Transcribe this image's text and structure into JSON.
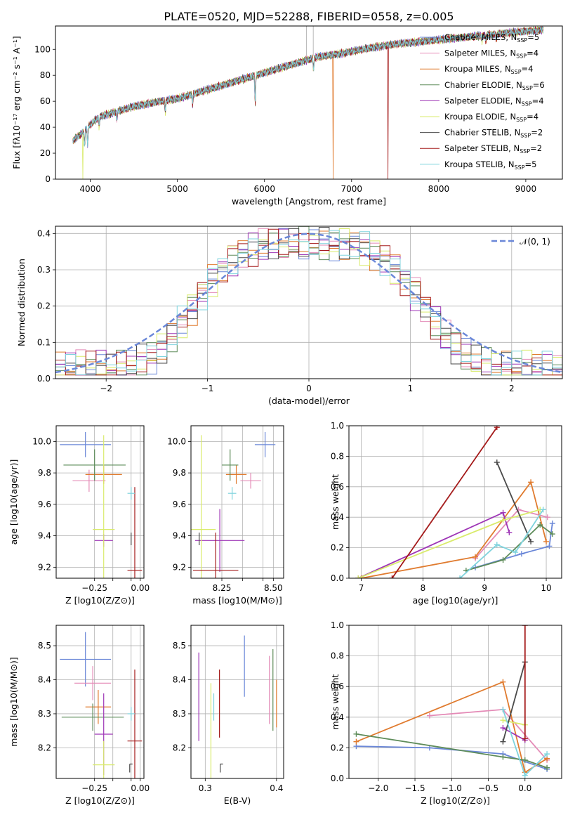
{
  "figure": {
    "title": "PLATE=0520, MJD=52288, FIBERID=0558, z=0.005"
  },
  "colors": {
    "Chabrier MILES": "#6a87d8",
    "Salpeter MILES": "#e48bb7",
    "Kroupa MILES": "#e07b2f",
    "Chabrier ELODIE": "#5e8c5a",
    "Salpeter ELODIE": "#9e35b6",
    "Kroupa ELODIE": "#d9eb6b",
    "Chabrier STELIB": "#4a4a4a",
    "Salpeter STELIB": "#a51c1c",
    "Kroupa STELIB": "#7fd3dd",
    "normal_curve": "#6a87d8"
  },
  "chart_data": [
    {
      "id": "spectrum",
      "type": "line",
      "xlabel": "wavelength [Angstrom, rest frame]",
      "ylabel": "Flux [f_λ 10^-17 erg cm^-2 s^-1 A^-1]",
      "xlim": [
        3600,
        9420
      ],
      "ylim": [
        0,
        118
      ],
      "xticks": [
        4000,
        5000,
        6000,
        7000,
        8000,
        9000
      ],
      "yticks": [
        0,
        20,
        40,
        60,
        80,
        100
      ],
      "grid": false,
      "legend_position": "lower-right",
      "legend": [
        {
          "name": "Chabrier MILES",
          "nssp": 5
        },
        {
          "name": "Salpeter MILES",
          "nssp": 4
        },
        {
          "name": "Kroupa MILES",
          "nssp": 4
        },
        {
          "name": "Chabrier ELODIE",
          "nssp": 6
        },
        {
          "name": "Salpeter ELODIE",
          "nssp": 4
        },
        {
          "name": "Kroupa ELODIE",
          "nssp": 4
        },
        {
          "name": "Chabrier STELIB",
          "nssp": 2
        },
        {
          "name": "Salpeter STELIB",
          "nssp": 2
        },
        {
          "name": "Kroupa STELIB",
          "nssp": 5
        }
      ],
      "continuum": [
        [
          3800,
          30
        ],
        [
          3900,
          35
        ],
        [
          4000,
          42
        ],
        [
          4100,
          48
        ],
        [
          4300,
          52
        ],
        [
          4500,
          56
        ],
        [
          4800,
          60
        ],
        [
          5000,
          62
        ],
        [
          5200,
          66
        ],
        [
          5400,
          70
        ],
        [
          5700,
          76
        ],
        [
          6000,
          82
        ],
        [
          6300,
          88
        ],
        [
          6600,
          94
        ],
        [
          6900,
          97
        ],
        [
          7200,
          101
        ],
        [
          7500,
          104
        ],
        [
          7800,
          106
        ],
        [
          8100,
          108
        ],
        [
          8400,
          110
        ],
        [
          8700,
          112
        ],
        [
          9000,
          114
        ],
        [
          9200,
          115
        ]
      ],
      "absorption_features": [
        [
          3934,
          12
        ],
        [
          3969,
          14
        ],
        [
          4102,
          8
        ],
        [
          4305,
          6
        ],
        [
          4861,
          10
        ],
        [
          5175,
          8
        ],
        [
          5893,
          22
        ],
        [
          6563,
          10
        ],
        [
          8498,
          4
        ],
        [
          8542,
          5
        ],
        [
          8662,
          5
        ]
      ],
      "spikes": [
        {
          "series": "Kroupa ELODIE",
          "x": 3915,
          "y": 0
        },
        {
          "series": "Kroupa MILES",
          "x": 6790,
          "y": 0
        },
        {
          "series": "Salpeter STELIB",
          "x": 7420,
          "y": 0
        }
      ]
    },
    {
      "id": "residuals",
      "type": "line",
      "xlabel": "(data-model)/error",
      "ylabel": "Normed distribution",
      "xlim": [
        -2.5,
        2.5
      ],
      "ylim": [
        0,
        0.42
      ],
      "xticks": [
        -2,
        -1,
        0,
        1,
        2
      ],
      "yticks": [
        0.0,
        0.1,
        0.2,
        0.3,
        0.4
      ],
      "grid": true,
      "legend_position": "upper-right",
      "legend": [
        {
          "name": "N(0, 1)",
          "style": "dashed"
        }
      ],
      "bin_width": 0.1,
      "histogram_shape": "approximately flat-topped, peak ~0.38 near 0, falling to ~0.04 at ±2.5"
    },
    {
      "id": "age_vs_Z",
      "type": "scatter",
      "xlabel": "Z [log10(Z/Z⊙)]",
      "ylabel": "age [log10(age/yr)]",
      "xlim": [
        -0.46,
        0.02
      ],
      "ylim": [
        9.13,
        10.1
      ],
      "xticks": [
        -0.25,
        -0.15,
        -0.05,
        0.0
      ],
      "xticklabels": [
        "−0.25",
        "",
        "",
        "0.00"
      ],
      "yticks": [
        9.2,
        9.4,
        9.6,
        9.8,
        10.0
      ],
      "grid": true,
      "points": [
        {
          "series": "Chabrier MILES",
          "x": -0.3,
          "y": 9.98,
          "xerr": 0.14,
          "yerr": 0.08
        },
        {
          "series": "Salpeter MILES",
          "x": -0.28,
          "y": 9.75,
          "xerr": 0.09,
          "yerr": 0.07
        },
        {
          "series": "Kroupa MILES",
          "x": -0.2,
          "y": 9.79,
          "xerr": 0.1,
          "yerr": 0.06
        },
        {
          "series": "Chabrier ELODIE",
          "x": -0.25,
          "y": 9.85,
          "xerr": 0.17,
          "yerr": 0.1
        },
        {
          "series": "Salpeter ELODIE",
          "x": -0.2,
          "y": 9.37,
          "xerr": 0.05,
          "yerr": 0.04
        },
        {
          "series": "Kroupa ELODIE",
          "x": -0.2,
          "y": 9.44,
          "xerr": 0.06,
          "yerr": 0.6
        },
        {
          "series": "Chabrier STELIB",
          "x": -0.05,
          "y": 9.38,
          "xerr": 0.0,
          "yerr": 0.04
        },
        {
          "series": "Salpeter STELIB",
          "x": -0.03,
          "y": 9.18,
          "xerr": 0.04,
          "yerr": 0.53
        },
        {
          "series": "Kroupa STELIB",
          "x": -0.05,
          "y": 9.67,
          "xerr": 0.02,
          "yerr": 0.04
        }
      ]
    },
    {
      "id": "age_vs_mass",
      "type": "scatter",
      "xlabel": "mass [log10(M/M⊙)]",
      "ylabel": "",
      "xlim": [
        8.1,
        8.55
      ],
      "ylim": [
        9.13,
        10.1
      ],
      "xticks": [
        8.25,
        8.35,
        8.45,
        8.5
      ],
      "xticklabels": [
        "8.25",
        "",
        "",
        "8.50"
      ],
      "yticks": [
        9.2,
        9.4,
        9.6,
        9.8,
        10.0
      ],
      "grid": true,
      "points": [
        {
          "series": "Chabrier MILES",
          "x": 8.46,
          "y": 9.98,
          "xerr": 0.05,
          "yerr": 0.08
        },
        {
          "series": "Salpeter MILES",
          "x": 8.39,
          "y": 9.75,
          "xerr": 0.05,
          "yerr": 0.05
        },
        {
          "series": "Kroupa MILES",
          "x": 8.32,
          "y": 9.79,
          "xerr": 0.05,
          "yerr": 0.06
        },
        {
          "series": "Chabrier ELODIE",
          "x": 8.29,
          "y": 9.85,
          "xerr": 0.04,
          "yerr": 0.1
        },
        {
          "series": "Salpeter ELODIE",
          "x": 8.24,
          "y": 9.37,
          "xerr": 0.12,
          "yerr": 0.2
        },
        {
          "series": "Kroupa ELODIE",
          "x": 8.15,
          "y": 9.44,
          "xerr": 0.07,
          "yerr": 0.6
        },
        {
          "series": "Chabrier STELIB",
          "x": 8.14,
          "y": 9.38,
          "xerr": 0.0,
          "yerr": 0.04
        },
        {
          "series": "Salpeter STELIB",
          "x": 8.22,
          "y": 9.18,
          "xerr": 0.11,
          "yerr": 0.24
        },
        {
          "series": "Kroupa STELIB",
          "x": 8.3,
          "y": 9.67,
          "xerr": 0.02,
          "yerr": 0.04
        }
      ]
    },
    {
      "id": "weight_vs_age",
      "type": "line",
      "xlabel": "age [log10(age/yr)]",
      "ylabel": "mass weight",
      "xlim": [
        6.8,
        10.25
      ],
      "ylim": [
        0,
        1
      ],
      "xticks": [
        7,
        8,
        9,
        10
      ],
      "yticks": [
        0.0,
        0.2,
        0.4,
        0.6,
        0.8,
        1.0
      ],
      "grid": true,
      "series": [
        {
          "name": "Chabrier MILES",
          "points": [
            [
              8.85,
              0.07
            ],
            [
              9.6,
              0.16
            ],
            [
              10.05,
              0.21
            ],
            [
              10.1,
              0.36
            ]
          ]
        },
        {
          "name": "Salpeter MILES",
          "points": [
            [
              8.85,
              0.13
            ],
            [
              9.55,
              0.45
            ],
            [
              10.02,
              0.4
            ]
          ]
        },
        {
          "name": "Kroupa MILES",
          "points": [
            [
              7.0,
              0.0
            ],
            [
              8.85,
              0.14
            ],
            [
              9.75,
              0.63
            ],
            [
              10.0,
              0.24
            ]
          ]
        },
        {
          "name": "Chabrier ELODIE",
          "points": [
            [
              8.7,
              0.05
            ],
            [
              9.3,
              0.12
            ],
            [
              9.9,
              0.35
            ],
            [
              10.1,
              0.29
            ]
          ]
        },
        {
          "name": "Salpeter ELODIE",
          "points": [
            [
              6.95,
              0.0
            ],
            [
              9.3,
              0.43
            ],
            [
              9.4,
              0.3
            ]
          ]
        },
        {
          "name": "Kroupa ELODIE",
          "points": [
            [
              6.95,
              0.0
            ],
            [
              9.3,
              0.38
            ],
            [
              9.9,
              0.45
            ]
          ]
        },
        {
          "name": "Chabrier STELIB",
          "points": [
            [
              9.2,
              0.76
            ],
            [
              9.75,
              0.24
            ]
          ]
        },
        {
          "name": "Salpeter STELIB",
          "points": [
            [
              7.5,
              0.0
            ],
            [
              9.2,
              0.99
            ]
          ]
        },
        {
          "name": "Kroupa STELIB",
          "points": [
            [
              8.6,
              0.0
            ],
            [
              9.2,
              0.22
            ],
            [
              9.5,
              0.17
            ],
            [
              9.95,
              0.45
            ]
          ]
        }
      ]
    },
    {
      "id": "mass_vs_Z",
      "type": "scatter",
      "xlabel": "Z [log10(Z/Z⊙)]",
      "ylabel": "mass [log10(M/M⊙)]",
      "xlim": [
        -0.46,
        0.02
      ],
      "ylim": [
        8.11,
        8.56
      ],
      "xticks": [
        -0.25,
        -0.15,
        -0.05,
        0.0
      ],
      "xticklabels": [
        "−0.25",
        "",
        "",
        "0.00"
      ],
      "yticks": [
        8.2,
        8.3,
        8.4,
        8.5
      ],
      "grid": true,
      "points": [
        {
          "series": "Chabrier MILES",
          "x": -0.3,
          "y": 8.46,
          "xerr": 0.14,
          "yerr": 0.08
        },
        {
          "series": "Salpeter MILES",
          "x": -0.26,
          "y": 8.39,
          "xerr": 0.1,
          "yerr": 0.05
        },
        {
          "series": "Kroupa MILES",
          "x": -0.23,
          "y": 8.32,
          "xerr": 0.07,
          "yerr": 0.05
        },
        {
          "series": "Chabrier ELODIE",
          "x": -0.26,
          "y": 8.29,
          "xerr": 0.17,
          "yerr": 0.04
        },
        {
          "series": "Salpeter ELODIE",
          "x": -0.2,
          "y": 8.24,
          "xerr": 0.05,
          "yerr": 0.12
        },
        {
          "series": "Kroupa ELODIE",
          "x": -0.2,
          "y": 8.15,
          "xerr": 0.06,
          "yerr": 0.07
        },
        {
          "series": "Chabrier STELIB",
          "x": -0.05,
          "y": 8.14,
          "xerr": 0.0,
          "yerr": 0.0
        },
        {
          "series": "Salpeter STELIB",
          "x": -0.03,
          "y": 8.22,
          "xerr": 0.04,
          "yerr": 0.21
        },
        {
          "series": "Kroupa STELIB",
          "x": -0.05,
          "y": 8.3,
          "xerr": 0.02,
          "yerr": 0.02
        }
      ]
    },
    {
      "id": "mass_vs_EBV",
      "type": "scatter",
      "xlabel": "E(B-V)",
      "ylabel": "",
      "xlim": [
        0.28,
        0.41
      ],
      "ylim": [
        8.11,
        8.56
      ],
      "xticks": [
        0.3,
        0.4
      ],
      "yticks": [
        8.2,
        8.3,
        8.4,
        8.5
      ],
      "grid": true,
      "points": [
        {
          "series": "Chabrier MILES",
          "x": 0.355,
          "y": 8.44,
          "yerr": 0.09
        },
        {
          "series": "Salpeter MILES",
          "x": 0.39,
          "y": 8.37,
          "yerr": 0.1
        },
        {
          "series": "Kroupa MILES",
          "x": 0.4,
          "y": 8.33,
          "yerr": 0.07
        },
        {
          "series": "Chabrier ELODIE",
          "x": 0.395,
          "y": 8.37,
          "yerr": 0.12
        },
        {
          "series": "Salpeter ELODIE",
          "x": 0.291,
          "y": 8.35,
          "yerr": 0.13
        },
        {
          "series": "Kroupa ELODIE",
          "x": 0.308,
          "y": 8.25,
          "yerr": 0.14
        },
        {
          "series": "Chabrier STELIB",
          "x": 0.323,
          "y": 8.14,
          "yerr": 0.0
        },
        {
          "series": "Salpeter STELIB",
          "x": 0.32,
          "y": 8.33,
          "yerr": 0.1
        },
        {
          "series": "Kroupa STELIB",
          "x": 0.312,
          "y": 8.32,
          "yerr": 0.04
        }
      ]
    },
    {
      "id": "weight_vs_Z",
      "type": "line",
      "xlabel": "Z [log10(Z/Z⊙)]",
      "ylabel": "mass weight",
      "xlim": [
        -2.4,
        0.5
      ],
      "ylim": [
        0,
        1
      ],
      "xticks": [
        -2.0,
        -1.5,
        -1.0,
        -0.5,
        0.0
      ],
      "yticks": [
        0.0,
        0.2,
        0.4,
        0.6,
        0.8,
        1.0
      ],
      "grid": true,
      "series": [
        {
          "name": "Chabrier MILES",
          "points": [
            [
              -2.3,
              0.21
            ],
            [
              -1.3,
              0.2
            ],
            [
              -0.3,
              0.16
            ],
            [
              0.3,
              0.06
            ]
          ]
        },
        {
          "name": "Salpeter MILES",
          "points": [
            [
              -1.3,
              0.41
            ],
            [
              -0.3,
              0.45
            ],
            [
              0.3,
              0.12
            ]
          ]
        },
        {
          "name": "Kroupa MILES",
          "points": [
            [
              -2.3,
              0.24
            ],
            [
              -0.3,
              0.63
            ],
            [
              0.0,
              0.04
            ],
            [
              0.3,
              0.13
            ]
          ]
        },
        {
          "name": "Chabrier ELODIE",
          "points": [
            [
              -2.3,
              0.29
            ],
            [
              -0.3,
              0.14
            ],
            [
              0.0,
              0.12
            ],
            [
              0.3,
              0.07
            ]
          ]
        },
        {
          "name": "Salpeter ELODIE",
          "points": [
            [
              -0.3,
              0.33
            ],
            [
              0.0,
              0.25
            ]
          ]
        },
        {
          "name": "Kroupa ELODIE",
          "points": [
            [
              -0.3,
              0.38
            ],
            [
              0.0,
              0.35
            ]
          ]
        },
        {
          "name": "Chabrier STELIB",
          "points": [
            [
              -0.3,
              0.24
            ],
            [
              0.0,
              0.76
            ]
          ]
        },
        {
          "name": "Salpeter STELIB",
          "points": [
            [
              0.0,
              1.0
            ],
            [
              0.0,
              0.26
            ]
          ]
        },
        {
          "name": "Kroupa STELIB",
          "points": [
            [
              -0.3,
              0.45
            ],
            [
              0.0,
              0.02
            ],
            [
              0.3,
              0.16
            ]
          ]
        }
      ]
    }
  ]
}
